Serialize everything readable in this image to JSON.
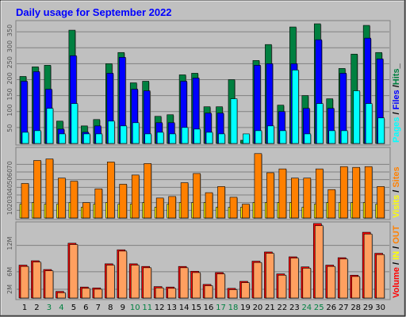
{
  "colors": {
    "background": "#c0c0c0",
    "title": "#0000ff",
    "hits": "#008040",
    "files": "#0000ff",
    "pages": "#00ffff",
    "visits": "#ffff00",
    "sites": "#ff8000",
    "kbytes": "#ff0000",
    "weekend": "#008040",
    "weekday": "#000000"
  },
  "chart_data": [
    {
      "type": "bar",
      "title": "Daily usage for September 2022",
      "panel": "top",
      "side_label": {
        "pages": "Pages",
        "sep1": " / ",
        "files": "Files",
        "sep2": " /",
        "hits": "Hits",
        "tail": "_"
      },
      "yticks": [
        50,
        100,
        150,
        200,
        250,
        300,
        350
      ],
      "ylim": [
        0,
        380
      ],
      "categories": [
        "1",
        "2",
        "3",
        "4",
        "5",
        "6",
        "7",
        "8",
        "9",
        "10",
        "11",
        "12",
        "13",
        "14",
        "15",
        "16",
        "17",
        "18",
        "19",
        "20",
        "21",
        "22",
        "23",
        "24",
        "25",
        "26",
        "27",
        "28",
        "29",
        "30"
      ],
      "weekend_days": [
        "3",
        "4",
        "10",
        "11",
        "17",
        "18",
        "24",
        "25"
      ],
      "series": [
        {
          "name": "Hits",
          "values": [
            210,
            240,
            245,
            70,
            355,
            55,
            75,
            250,
            285,
            190,
            195,
            85,
            90,
            215,
            220,
            115,
            115,
            200,
            10,
            260,
            310,
            120,
            365,
            150,
            375,
            140,
            235,
            280,
            370,
            285
          ]
        },
        {
          "name": "Files",
          "values": [
            195,
            225,
            170,
            45,
            275,
            35,
            55,
            220,
            270,
            170,
            165,
            65,
            65,
            195,
            205,
            95,
            95,
            0,
            0,
            245,
            250,
            100,
            250,
            110,
            325,
            110,
            220,
            0,
            330,
            265
          ]
        },
        {
          "name": "Pages",
          "values": [
            35,
            40,
            110,
            30,
            125,
            30,
            30,
            70,
            55,
            65,
            30,
            35,
            30,
            50,
            45,
            35,
            30,
            140,
            30,
            40,
            55,
            40,
            230,
            30,
            125,
            40,
            40,
            165,
            125,
            80
          ]
        }
      ]
    },
    {
      "type": "bar",
      "panel": "middle",
      "side_label": {
        "visits": "Visits",
        "sep": " / ",
        "sites": "Sites"
      },
      "yticks": [
        10,
        20,
        30,
        40,
        50,
        60,
        70
      ],
      "ylim": [
        0,
        90
      ],
      "series": [
        {
          "name": "Visits",
          "values": [
            18,
            20,
            18,
            18,
            20,
            14,
            18,
            20,
            18,
            18,
            20,
            14,
            18,
            20,
            20,
            20,
            14,
            14,
            14,
            20,
            20,
            20,
            20,
            14,
            18,
            20,
            20,
            20,
            20,
            18
          ]
        },
        {
          "name": "Sites",
          "values": [
            45,
            75,
            77,
            52,
            48,
            20,
            38,
            73,
            44,
            56,
            71,
            26,
            28,
            46,
            58,
            33,
            41,
            27,
            18,
            84,
            59,
            64,
            52,
            52,
            64,
            37,
            67,
            66,
            67,
            41
          ]
        }
      ]
    },
    {
      "type": "bar",
      "panel": "bottom",
      "side_label": {
        "volume": "Volume",
        "sep1": " / ",
        "inn": "IN",
        "sep2": " / ",
        "out": "OUT"
      },
      "yticks": [
        "2M",
        "6M",
        "12M"
      ],
      "ytick_values": [
        2,
        6,
        12
      ],
      "ylim": [
        0,
        17
      ],
      "series": [
        {
          "name": "IN",
          "values": [
            7.5,
            8.5,
            6.5,
            1.5,
            12.5,
            2.5,
            2.3,
            7.8,
            11.0,
            7.8,
            7.2,
            2.6,
            2.5,
            7.2,
            6.1,
            3.1,
            5.8,
            2.2,
            3.8,
            8.4,
            10.5,
            5.5,
            9.4,
            7.1,
            17.0,
            7.5,
            9.2,
            5.2,
            15.0,
            10.2
          ]
        },
        {
          "name": "OUT",
          "values": [
            7.2,
            8.2,
            6.2,
            1.2,
            12.2,
            2.2,
            2.0,
            7.5,
            10.7,
            7.5,
            6.9,
            2.3,
            2.2,
            6.9,
            5.8,
            2.8,
            5.5,
            1.9,
            3.5,
            8.1,
            10.2,
            5.2,
            9.1,
            6.8,
            16.5,
            7.2,
            8.9,
            4.9,
            14.6,
            9.9
          ]
        }
      ]
    }
  ]
}
